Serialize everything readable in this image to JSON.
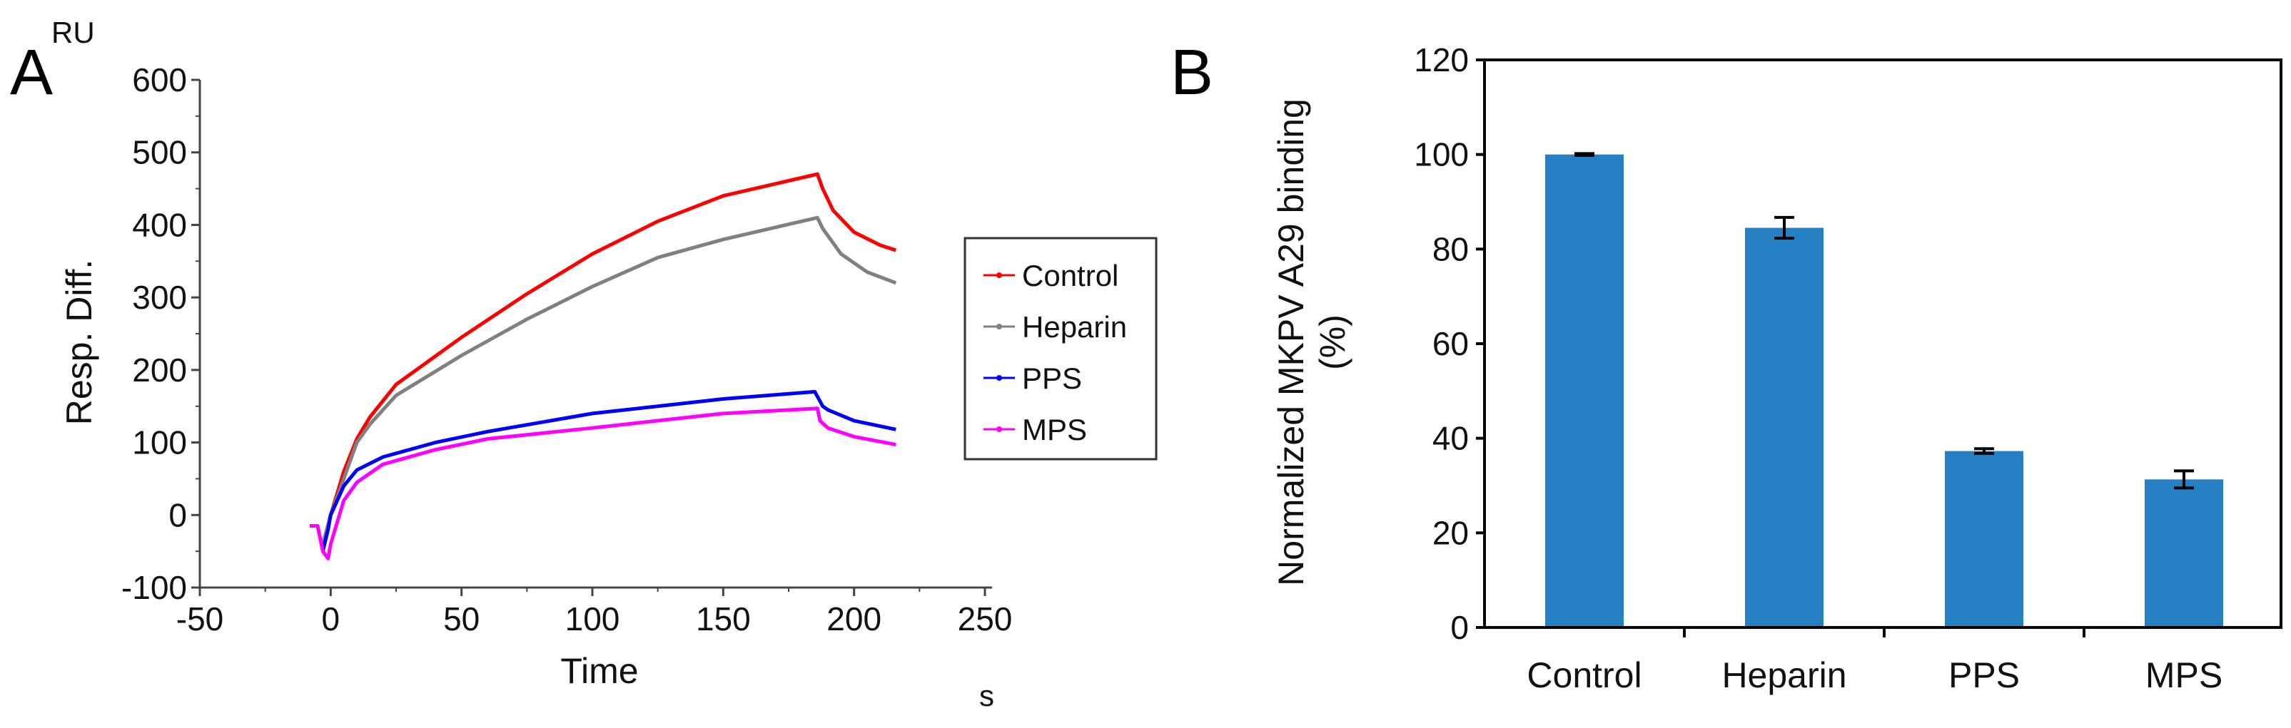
{
  "chart_data": [
    {
      "type": "line",
      "panel_label": "A",
      "title": "",
      "xlabel": "Time",
      "xunit": "s",
      "ylabel": "Resp. Diff.",
      "yunit": "RU",
      "xlim": [
        -50,
        250
      ],
      "ylim": [
        -100,
        600
      ],
      "xticks": [
        "-50",
        "0",
        "50",
        "100",
        "150",
        "200",
        "250"
      ],
      "yticks": [
        "-100",
        "0",
        "100",
        "200",
        "300",
        "400",
        "500",
        "600"
      ],
      "legend_position": "right",
      "series": [
        {
          "name": "Control",
          "color": "#ff0000",
          "x": [
            -3,
            0,
            5,
            10,
            15,
            25,
            50,
            75,
            100,
            125,
            150,
            186,
            188,
            192,
            200,
            210,
            216
          ],
          "y": [
            -50,
            0,
            60,
            105,
            135,
            180,
            245,
            305,
            360,
            405,
            440,
            470,
            450,
            420,
            390,
            372,
            365
          ]
        },
        {
          "name": "Heparin",
          "color": "#808080",
          "x": [
            -3,
            0,
            10,
            15,
            25,
            50,
            75,
            100,
            125,
            150,
            186,
            188,
            195,
            205,
            216
          ],
          "y": [
            -40,
            0,
            100,
            125,
            165,
            220,
            270,
            315,
            355,
            380,
            410,
            395,
            360,
            335,
            320
          ]
        },
        {
          "name": "PPS",
          "color": "#0000ff",
          "x": [
            -3,
            -1,
            0,
            5,
            10,
            20,
            40,
            60,
            100,
            150,
            185,
            188,
            190,
            200,
            216
          ],
          "y": [
            -50,
            -20,
            0,
            40,
            62,
            80,
            100,
            115,
            140,
            160,
            170,
            150,
            145,
            130,
            118
          ]
        },
        {
          "name": "MPS",
          "color": "#ff00ff",
          "x": [
            -8,
            -5,
            -3,
            -1,
            0,
            5,
            10,
            20,
            40,
            60,
            100,
            150,
            186,
            187,
            190,
            200,
            216
          ],
          "y": [
            -15,
            -15,
            -50,
            -60,
            -40,
            20,
            45,
            70,
            90,
            105,
            120,
            140,
            147,
            130,
            120,
            108,
            97
          ]
        }
      ]
    },
    {
      "type": "bar",
      "panel_label": "B",
      "title": "",
      "xlabel": "",
      "ylabel": "Normalized MKPV A29 binding",
      "ylabel2": "(%)",
      "ylim": [
        0,
        120
      ],
      "yticks": [
        "0",
        "20",
        "40",
        "60",
        "80",
        "100",
        "120"
      ],
      "categories": [
        "Control",
        "Heparin",
        "PPS",
        "MPS"
      ],
      "values": [
        100,
        84.5,
        37.3,
        31.3
      ],
      "errors": [
        0.2,
        2.2,
        0.5,
        1.8
      ],
      "color": "#2580c3"
    }
  ]
}
